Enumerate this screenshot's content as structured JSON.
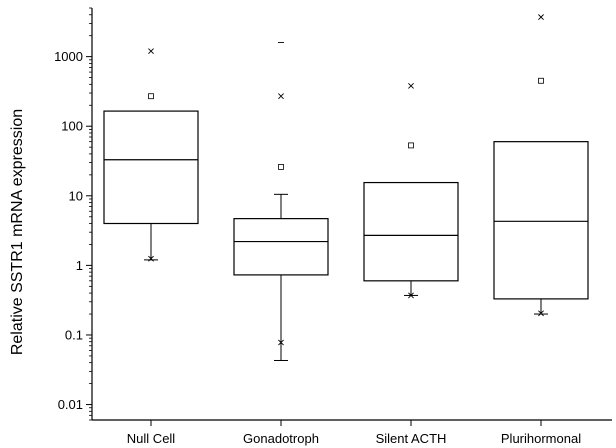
{
  "chart_data": {
    "type": "box",
    "ylabel": "Relative SSTR1 mRNA expression",
    "xlabel": "",
    "title": "",
    "yscale": "log",
    "ylim": [
      0.006,
      5000
    ],
    "y_ticks": [
      {
        "value": 0.01,
        "label": "0.01"
      },
      {
        "value": 0.1,
        "label": "0.1"
      },
      {
        "value": 1,
        "label": "1"
      },
      {
        "value": 10,
        "label": "10"
      },
      {
        "value": 100,
        "label": "100"
      },
      {
        "value": 1000,
        "label": "1000"
      }
    ],
    "categories": [
      "Null Cell",
      "Gonadotroph",
      "Silent ACTH",
      "Plurihormonal"
    ],
    "boxes": [
      {
        "q1": 4.0,
        "median": 33,
        "q3": 165,
        "whisker_low": 1.2,
        "whisker_high": null,
        "min_x": 1.25,
        "mean": 270,
        "max_x": 1200,
        "max_dash": null
      },
      {
        "q1": 0.73,
        "median": 2.2,
        "q3": 4.7,
        "whisker_low": 0.043,
        "whisker_high": 10.5,
        "min_x": 0.078,
        "mean": 26,
        "max_x": 270,
        "max_dash": 1600
      },
      {
        "q1": 0.6,
        "median": 2.7,
        "q3": 15.5,
        "whisker_low": 0.37,
        "whisker_high": null,
        "min_x": 0.37,
        "mean": 53,
        "max_x": 380,
        "max_dash": null
      },
      {
        "q1": 0.33,
        "median": 4.3,
        "q3": 60,
        "whisker_low": 0.2,
        "whisker_high": null,
        "min_x": 0.205,
        "mean": 450,
        "max_x": 3700,
        "max_dash": null
      }
    ]
  }
}
